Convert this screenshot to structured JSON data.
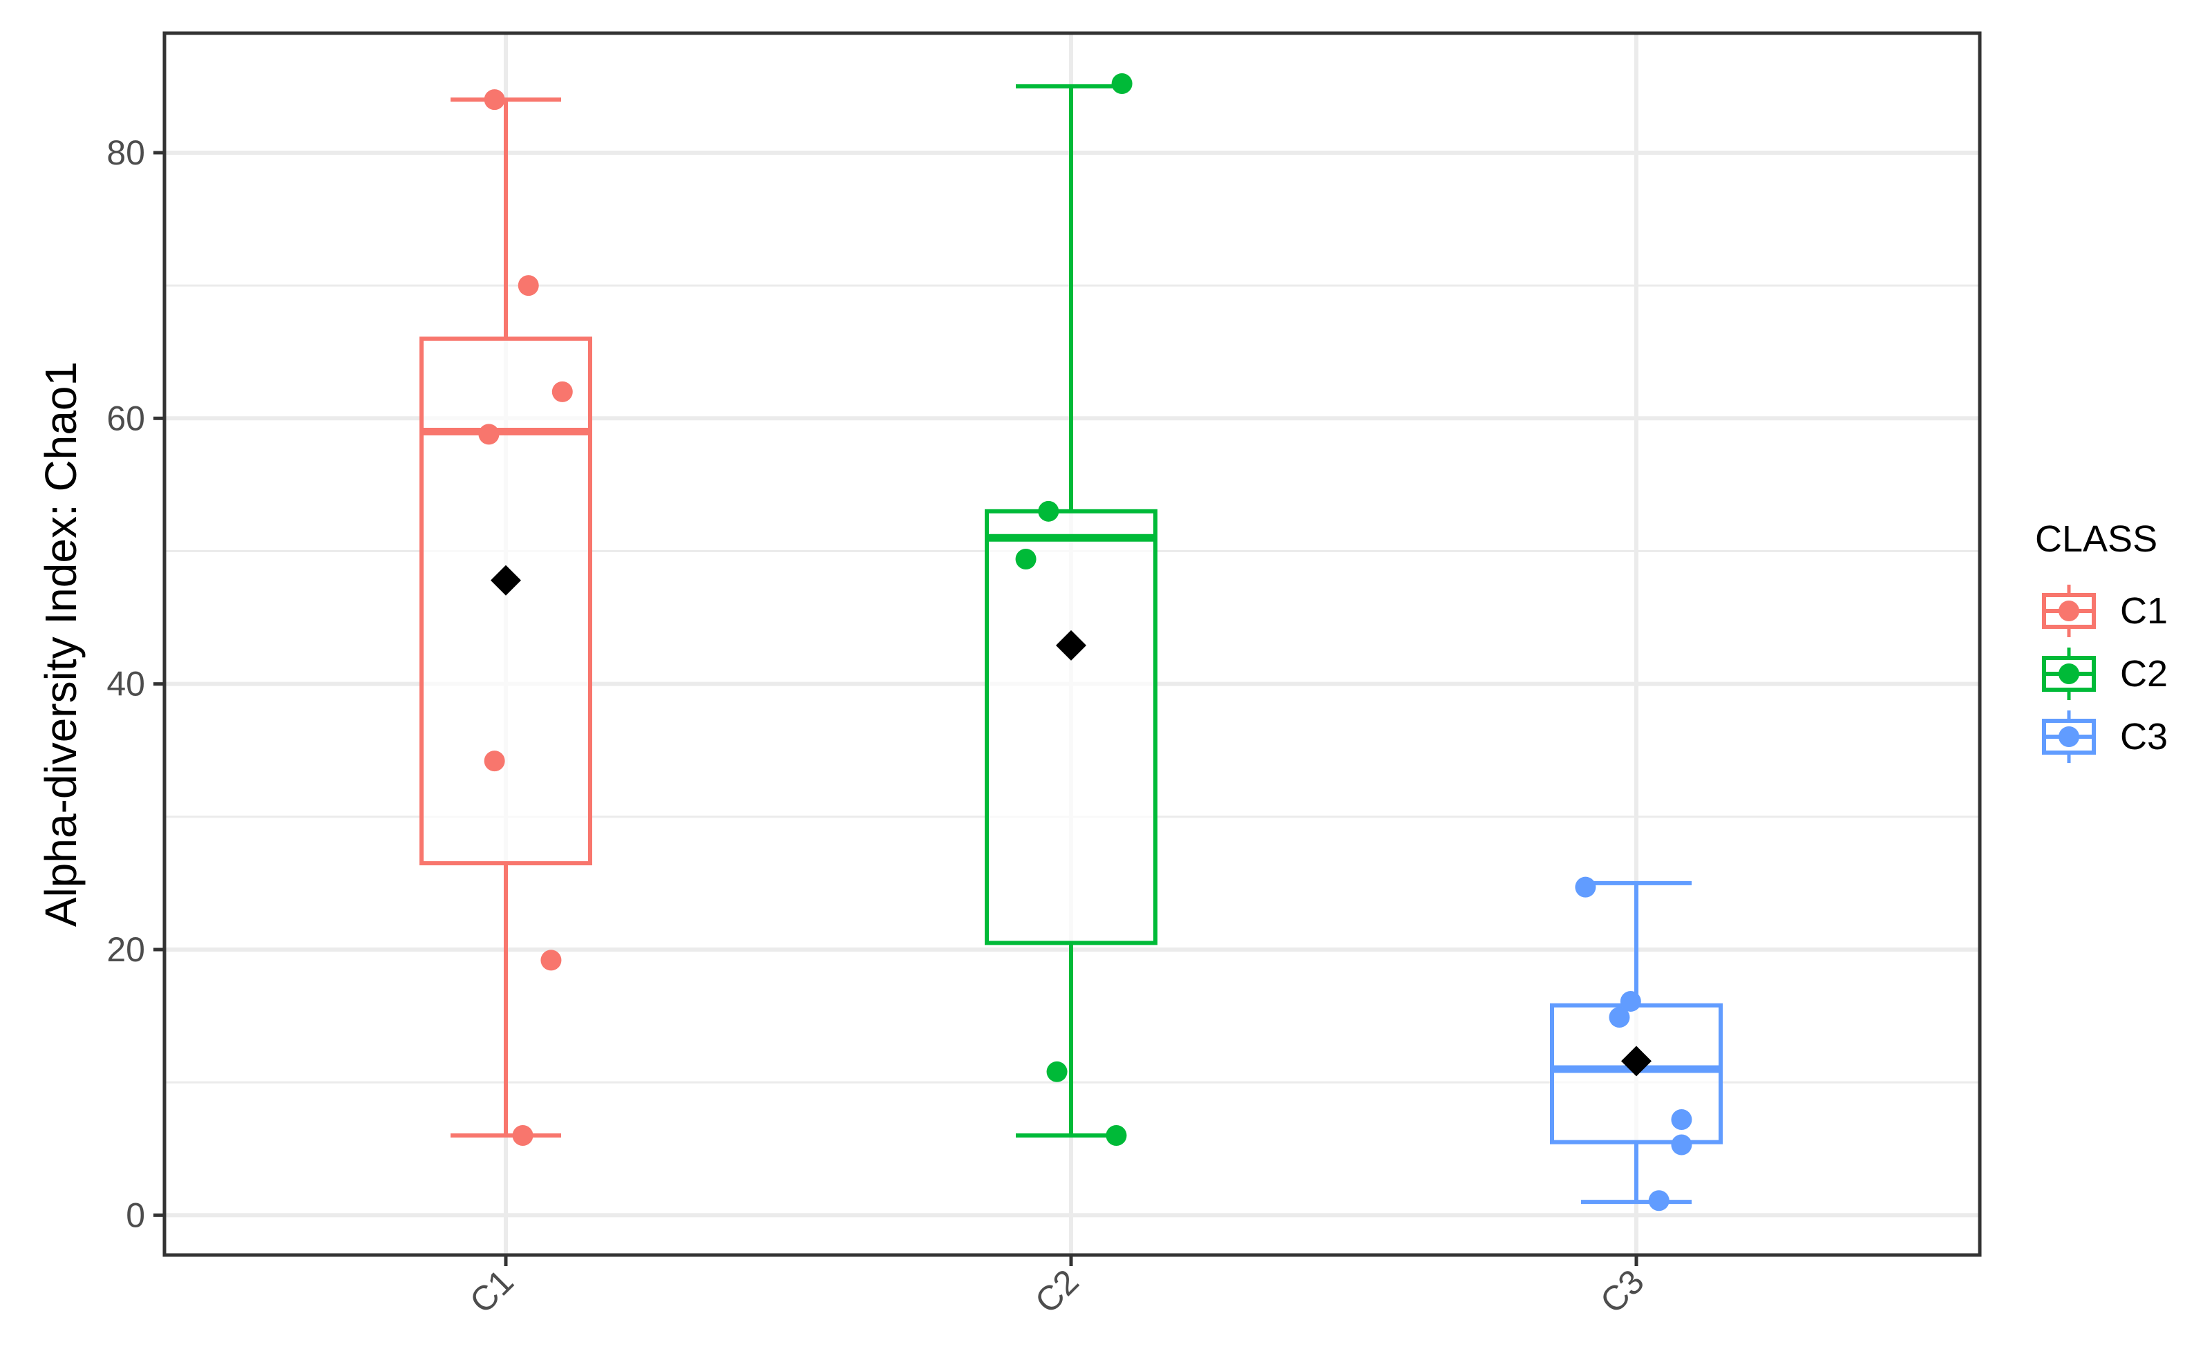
{
  "chart_data": {
    "type": "boxplot",
    "title": "",
    "xlabel": "",
    "ylabel": "Alpha-diversity Index: Chao1",
    "ylim": [
      -3,
      89
    ],
    "yticks": [
      0,
      20,
      40,
      60,
      80
    ],
    "ytick_labels": [
      "0",
      "20",
      "40",
      "60",
      "80"
    ],
    "grid": true,
    "legend": {
      "title": "CLASS",
      "placement": "right",
      "entries": [
        "C1",
        "C2",
        "C3"
      ]
    },
    "categories": [
      "C1",
      "C2",
      "C3"
    ],
    "series": [
      {
        "name": "C1",
        "color": "#F8766D",
        "whisker_low": 6,
        "q1": 26.5,
        "median": 59,
        "q3": 66,
        "whisker_high": 84,
        "mean": 47.8,
        "points": [
          {
            "x_offset": -0.02,
            "y": 84
          },
          {
            "x_offset": 0.04,
            "y": 70
          },
          {
            "x_offset": 0.1,
            "y": 62
          },
          {
            "x_offset": -0.03,
            "y": 58.8
          },
          {
            "x_offset": -0.02,
            "y": 34.2
          },
          {
            "x_offset": 0.08,
            "y": 19.2
          },
          {
            "x_offset": 0.03,
            "y": 6
          }
        ]
      },
      {
        "name": "C2",
        "color": "#00BA38",
        "whisker_low": 6,
        "q1": 20.5,
        "median": 51,
        "q3": 53,
        "whisker_high": 85,
        "mean": 42.9,
        "points": [
          {
            "x_offset": 0.09,
            "y": 85.2
          },
          {
            "x_offset": -0.04,
            "y": 53
          },
          {
            "x_offset": -0.08,
            "y": 49.4
          },
          {
            "x_offset": -0.025,
            "y": 10.8
          },
          {
            "x_offset": 0.08,
            "y": 6
          }
        ]
      },
      {
        "name": "C3",
        "color": "#619CFF",
        "whisker_low": 1,
        "q1": 5.5,
        "median": 11,
        "q3": 15.8,
        "whisker_high": 25,
        "mean": 11.6,
        "points": [
          {
            "x_offset": -0.09,
            "y": 24.7
          },
          {
            "x_offset": -0.01,
            "y": 16.1
          },
          {
            "x_offset": -0.03,
            "y": 14.9
          },
          {
            "x_offset": 0.08,
            "y": 7.2
          },
          {
            "x_offset": 0.08,
            "y": 5.3
          },
          {
            "x_offset": 0.04,
            "y": 1.1
          }
        ]
      }
    ]
  }
}
